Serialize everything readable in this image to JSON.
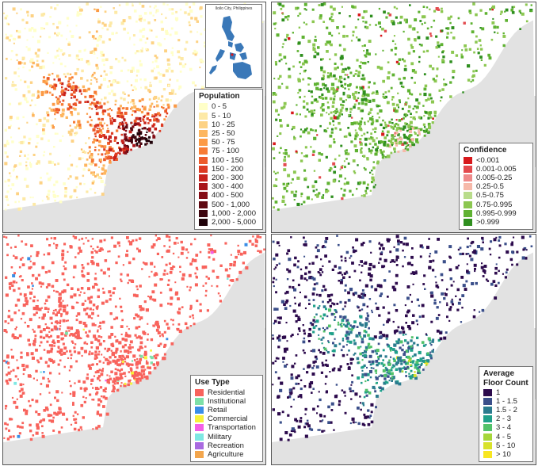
{
  "inset": {
    "title": "Iloilo City, Philippines"
  },
  "panels": [
    {
      "name": "population",
      "legend_title": "Population",
      "items": [
        {
          "label": "0 - 5",
          "color": "#ffffc8"
        },
        {
          "label": "5 - 10",
          "color": "#fde9a6"
        },
        {
          "label": "10 - 25",
          "color": "#fdd284"
        },
        {
          "label": "25 - 50",
          "color": "#fdb65f"
        },
        {
          "label": "50 - 75",
          "color": "#fc9a45"
        },
        {
          "label": "75 - 100",
          "color": "#f77b34"
        },
        {
          "label": "100 - 150",
          "color": "#ed5a2a"
        },
        {
          "label": "150 - 200",
          "color": "#dd3a22"
        },
        {
          "label": "200 - 300",
          "color": "#c7221c"
        },
        {
          "label": "300 - 400",
          "color": "#a8141a"
        },
        {
          "label": "400 - 500",
          "color": "#850d16"
        },
        {
          "label": "500 - 1,000",
          "color": "#5f0912"
        },
        {
          "label": "1,000 - 2,000",
          "color": "#3d050e"
        },
        {
          "label": "2,000 - 5,000",
          "color": "#21030a"
        }
      ]
    },
    {
      "name": "confidence",
      "legend_title": "Confidence",
      "items": [
        {
          "label": "<0.001",
          "color": "#d7191c"
        },
        {
          "label": "0.001-0.005",
          "color": "#e34a4e"
        },
        {
          "label": "0.005-0.25",
          "color": "#ef8a8a"
        },
        {
          "label": "0.25-0.5",
          "color": "#f6b9a9"
        },
        {
          "label": "0.5-0.75",
          "color": "#b9dc8b"
        },
        {
          "label": "0.75-0.995",
          "color": "#8cc751"
        },
        {
          "label": "0.995-0.999",
          "color": "#5fb232"
        },
        {
          "label": ">0.999",
          "color": "#2f8f1f"
        }
      ]
    },
    {
      "name": "use-type",
      "legend_title": "Use Type",
      "items": [
        {
          "label": "Residential",
          "color": "#f8635c"
        },
        {
          "label": "Institutional",
          "color": "#7de0a8"
        },
        {
          "label": "Retail",
          "color": "#3a8ee6"
        },
        {
          "label": "Commercial",
          "color": "#f7f23a"
        },
        {
          "label": "Transportation",
          "color": "#f45fe6"
        },
        {
          "label": "Military",
          "color": "#7ee8e3"
        },
        {
          "label": "Recreation",
          "color": "#a96be0"
        },
        {
          "label": "Agriculture",
          "color": "#f3a64d"
        }
      ]
    },
    {
      "name": "floor-count",
      "legend_title_1": "Average",
      "legend_title_2": "Floor Count",
      "items": [
        {
          "label": "1",
          "color": "#2c0a4c"
        },
        {
          "label": "1 - 1.5",
          "color": "#3b4f8a"
        },
        {
          "label": "1.5 - 2",
          "color": "#2b7b8e"
        },
        {
          "label": "2 - 3",
          "color": "#20a08a"
        },
        {
          "label": "3 - 4",
          "color": "#52c26a"
        },
        {
          "label": "4 - 5",
          "color": "#a6d63a"
        },
        {
          "label": "5 - 10",
          "color": "#d8e22a"
        },
        {
          "label": "> 10",
          "color": "#f8e621"
        }
      ]
    }
  ]
}
